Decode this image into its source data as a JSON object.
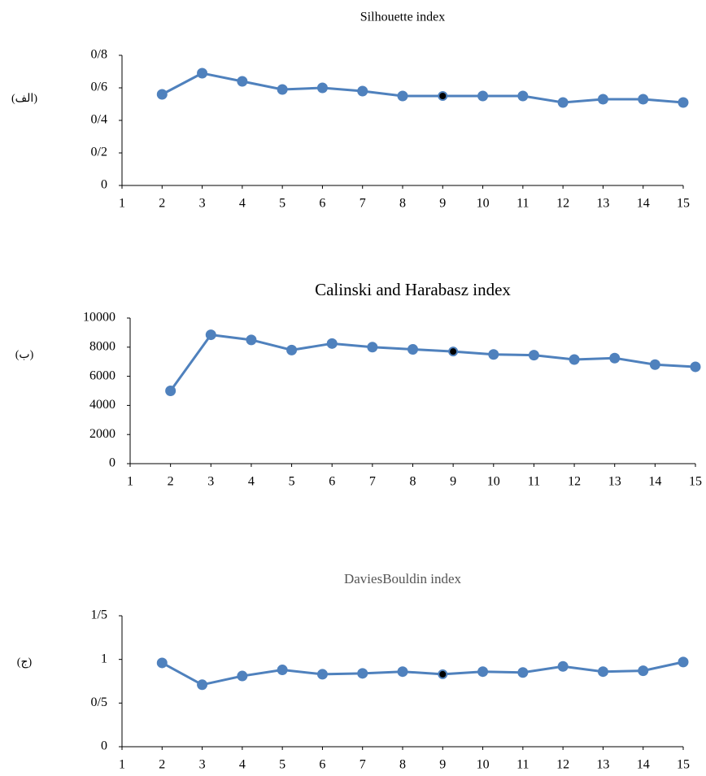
{
  "chart_data": [
    {
      "type": "line",
      "title": "Silhouette index",
      "panel_label": "(الف)",
      "x": [
        2,
        3,
        4,
        5,
        6,
        7,
        8,
        9,
        10,
        11,
        12,
        13,
        14,
        15
      ],
      "values": [
        0.56,
        0.69,
        0.64,
        0.59,
        0.6,
        0.58,
        0.55,
        0.55,
        0.55,
        0.55,
        0.51,
        0.53,
        0.53,
        0.51
      ],
      "color": "#4f81bd",
      "highlight": {
        "x": 9,
        "color": "#000000"
      },
      "xlim": [
        1,
        15
      ],
      "xticks": [
        1,
        2,
        3,
        4,
        5,
        6,
        7,
        8,
        9,
        10,
        11,
        12,
        13,
        14,
        15
      ],
      "ylim": [
        0,
        0.8
      ],
      "yticks": [
        0,
        {
          "value": 0.2,
          "label": "0/2"
        },
        {
          "value": 0.4,
          "label": "0/4"
        },
        {
          "value": 0.6,
          "label": "0/6"
        },
        {
          "value": 0.8,
          "label": "0/8"
        }
      ]
    },
    {
      "type": "line",
      "title": "Calinski and Harabasz index",
      "panel_label": "(ب)",
      "x": [
        2,
        3,
        4,
        5,
        6,
        7,
        8,
        9,
        10,
        11,
        12,
        13,
        14,
        15
      ],
      "values": [
        5000,
        8850,
        8500,
        7800,
        8250,
        8000,
        7850,
        7700,
        7500,
        7450,
        7150,
        7250,
        6800,
        6650
      ],
      "color": "#4f81bd",
      "highlight": {
        "x": 9,
        "color": "#000000"
      },
      "xlim": [
        1,
        15
      ],
      "xticks": [
        1,
        2,
        3,
        4,
        5,
        6,
        7,
        8,
        9,
        10,
        11,
        12,
        13,
        14,
        15
      ],
      "ylim": [
        0,
        10000
      ],
      "yticks": [
        0,
        2000,
        4000,
        6000,
        8000,
        10000
      ]
    },
    {
      "type": "line",
      "title": "DaviesBouldin index",
      "panel_label": "(ج)",
      "x": [
        2,
        3,
        4,
        5,
        6,
        7,
        8,
        9,
        10,
        11,
        12,
        13,
        14,
        15
      ],
      "values": [
        0.96,
        0.71,
        0.81,
        0.88,
        0.83,
        0.84,
        0.86,
        0.83,
        0.86,
        0.85,
        0.92,
        0.86,
        0.87,
        0.97
      ],
      "color": "#4f81bd",
      "highlight": {
        "x": 9,
        "color": "#000000"
      },
      "xlim": [
        1,
        15
      ],
      "xticks": [
        1,
        2,
        3,
        4,
        5,
        6,
        7,
        8,
        9,
        10,
        11,
        12,
        13,
        14,
        15
      ],
      "ylim": [
        0,
        1.5
      ],
      "yticks": [
        0,
        {
          "value": 0.5,
          "label": "0/5"
        },
        1,
        {
          "value": 1.5,
          "label": "1/5"
        }
      ]
    }
  ]
}
